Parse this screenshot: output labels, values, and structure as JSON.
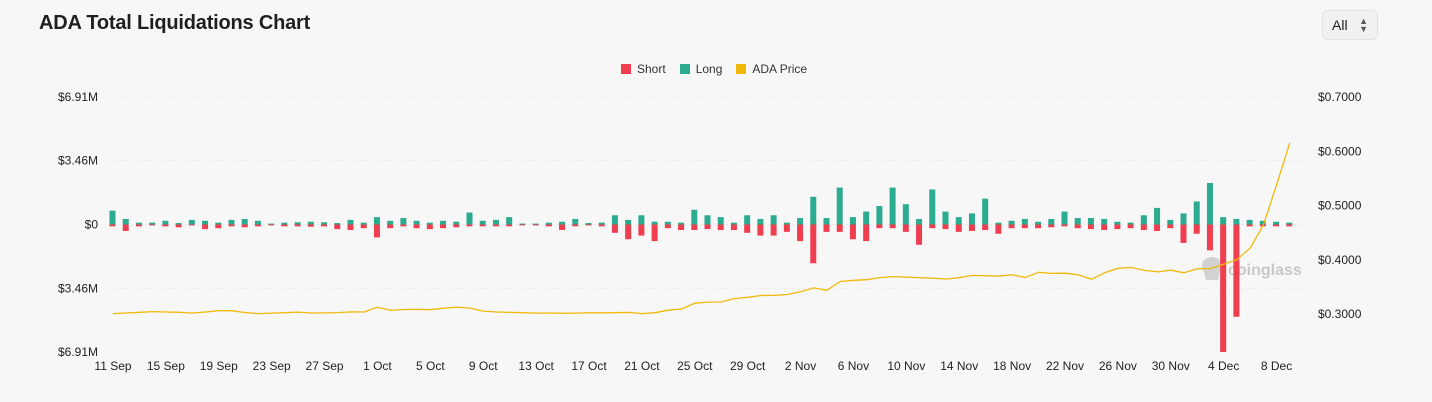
{
  "header": {
    "title": "ADA Total Liquidations Chart",
    "range_label": "All"
  },
  "legend": {
    "short_label": "Short",
    "long_label": "Long",
    "price_label": "ADA Price"
  },
  "colors": {
    "short": "#ef3e4f",
    "long": "#2bab8f",
    "price": "#f0b90b",
    "grid": "#ececec",
    "axis_text": "#222222"
  },
  "watermark": "coinglass",
  "chart_data": {
    "type": "bar",
    "title": "ADA Total Liquidations Chart",
    "left_ticks": [
      "$6.91M",
      "$3.46M",
      "$0",
      "$3.46M",
      "$6.91M"
    ],
    "right_ticks": [
      "$0.7000",
      "$0.6000",
      "$0.5000",
      "$0.4000",
      "$0.3000"
    ],
    "x_ticks": [
      "11 Sep",
      "15 Sep",
      "19 Sep",
      "23 Sep",
      "27 Sep",
      "1 Oct",
      "5 Oct",
      "9 Oct",
      "13 Oct",
      "17 Oct",
      "21 Oct",
      "25 Oct",
      "29 Oct",
      "2 Nov",
      "6 Nov",
      "10 Nov",
      "14 Nov",
      "18 Nov",
      "22 Nov",
      "26 Nov",
      "30 Nov",
      "4 Dec",
      "8 Dec"
    ],
    "ylim_liquidations_millions": [
      -6.91,
      6.91
    ],
    "ylim_price": [
      0.2275,
      0.7
    ],
    "x_range_days": [
      0,
      90
    ],
    "days_per_tick": 4,
    "series": [
      {
        "name": "Long",
        "unit": "USD millions",
        "values": [
          0.75,
          0.3,
          0.1,
          0.1,
          0.2,
          0.08,
          0.25,
          0.2,
          0.1,
          0.25,
          0.3,
          0.2,
          0.05,
          0.1,
          0.12,
          0.15,
          0.12,
          0.08,
          0.25,
          0.1,
          0.4,
          0.2,
          0.35,
          0.2,
          0.1,
          0.2,
          0.15,
          0.65,
          0.2,
          0.25,
          0.4,
          0.05,
          0.05,
          0.1,
          0.15,
          0.3,
          0.08,
          0.1,
          0.5,
          0.25,
          0.5,
          0.15,
          0.15,
          0.1,
          0.8,
          0.5,
          0.4,
          0.1,
          0.5,
          0.3,
          0.5,
          0.1,
          0.35,
          1.5,
          0.35,
          2.0,
          0.4,
          0.7,
          1.0,
          2.0,
          1.1,
          0.3,
          1.9,
          0.7,
          0.4,
          0.6,
          1.4,
          0.1,
          0.2,
          0.3,
          0.15,
          0.3,
          0.7,
          0.35,
          0.35,
          0.3,
          0.15,
          0.1,
          0.5,
          0.9,
          0.25,
          0.6,
          1.25,
          2.25,
          0.4,
          0.3,
          0.25,
          0.2,
          0.15,
          0.1
        ],
        "_note_values_index": "daily values starting 11 Sep"
      },
      {
        "name": "Short",
        "unit": "USD millions",
        "values": [
          0.1,
          0.35,
          0.1,
          0.05,
          0.1,
          0.15,
          0.05,
          0.25,
          0.2,
          0.1,
          0.15,
          0.1,
          0.05,
          0.1,
          0.1,
          0.12,
          0.1,
          0.25,
          0.3,
          0.2,
          0.7,
          0.2,
          0.1,
          0.2,
          0.25,
          0.2,
          0.15,
          0.1,
          0.1,
          0.1,
          0.1,
          0.05,
          0.05,
          0.1,
          0.3,
          0.1,
          0.05,
          0.1,
          0.45,
          0.8,
          0.6,
          0.9,
          0.2,
          0.3,
          0.3,
          0.25,
          0.3,
          0.3,
          0.45,
          0.6,
          0.6,
          0.4,
          0.9,
          2.1,
          0.4,
          0.4,
          0.8,
          0.9,
          0.2,
          0.2,
          0.4,
          1.1,
          0.2,
          0.25,
          0.4,
          0.35,
          0.3,
          0.5,
          0.2,
          0.2,
          0.2,
          0.15,
          0.1,
          0.2,
          0.25,
          0.3,
          0.25,
          0.2,
          0.3,
          0.35,
          0.2,
          1.0,
          0.5,
          1.4,
          6.91,
          5.0,
          0.1,
          0.1,
          0.1,
          0.1
        ]
      },
      {
        "name": "ADA Price",
        "unit": "USD",
        "values": [
          0.2987,
          0.2998,
          0.301,
          0.3023,
          0.3017,
          0.301,
          0.2998,
          0.3017,
          0.304,
          0.3041,
          0.3005,
          0.2986,
          0.2995,
          0.3004,
          0.3015,
          0.2998,
          0.3,
          0.3005,
          0.3018,
          0.3016,
          0.3106,
          0.3048,
          0.3063,
          0.3067,
          0.3059,
          0.3086,
          0.3105,
          0.3088,
          0.3032,
          0.3017,
          0.3008,
          0.3003,
          0.2995,
          0.2997,
          0.2993,
          0.2996,
          0.3001,
          0.3002,
          0.3004,
          0.3009,
          0.2986,
          0.3003,
          0.3049,
          0.3071,
          0.3179,
          0.32,
          0.3202,
          0.3265,
          0.3289,
          0.3321,
          0.3326,
          0.334,
          0.3392,
          0.3462,
          0.3421,
          0.3581,
          0.3604,
          0.3614,
          0.3654,
          0.3673,
          0.3661,
          0.3652,
          0.3643,
          0.3628,
          0.3652,
          0.3694,
          0.3688,
          0.3679,
          0.3707,
          0.3655,
          0.3751,
          0.3732,
          0.3735,
          0.3706,
          0.3623,
          0.3743,
          0.3826,
          0.3842,
          0.3789,
          0.3759,
          0.3791,
          0.3742,
          0.3816,
          0.3822,
          0.3901,
          0.3988,
          0.4198,
          0.4624,
          0.5374,
          0.6151
        ]
      }
    ]
  }
}
